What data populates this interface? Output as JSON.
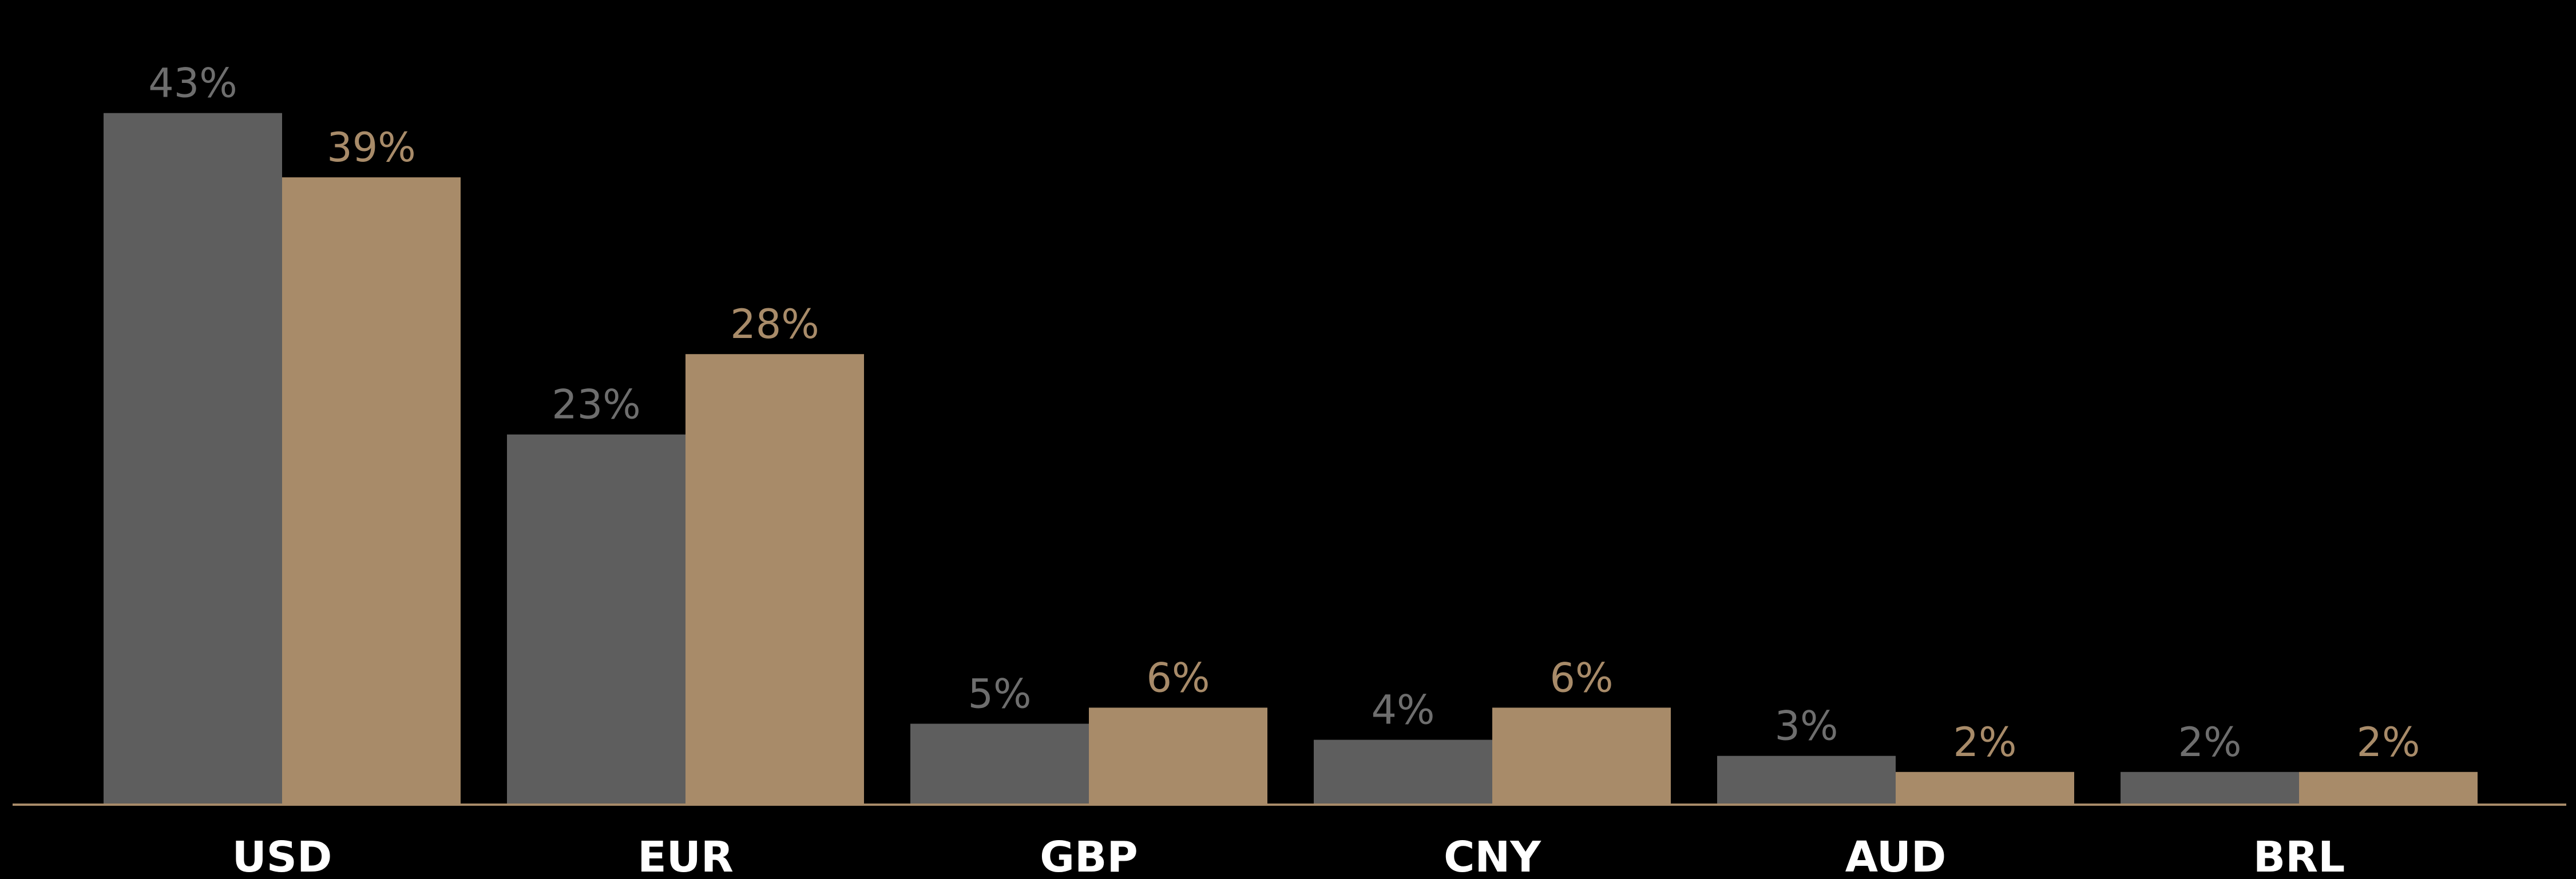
{
  "chart_data": {
    "type": "bar",
    "title": "",
    "xlabel": "",
    "ylabel": "",
    "categories": [
      "USD",
      "EUR",
      "GBP",
      "CNY",
      "AUD",
      "BRL"
    ],
    "series": [
      {
        "values": [
          43,
          23,
          5,
          4,
          3,
          2
        ],
        "labels": [
          "43%",
          "23%",
          "5%",
          "4%",
          "3%",
          "2%"
        ],
        "color": "#5e5e5e",
        "label_color": "#6e6e6e"
      },
      {
        "values": [
          39,
          28,
          6,
          6,
          2,
          2
        ],
        "labels": [
          "39%",
          "28%",
          "6%",
          "6%",
          "2%",
          "2%"
        ],
        "color": "#a88b69",
        "label_color": "#a88b69"
      }
    ],
    "ylim": [
      0,
      45
    ],
    "grid": false,
    "legend": false,
    "axis_color": "#a88b69"
  }
}
